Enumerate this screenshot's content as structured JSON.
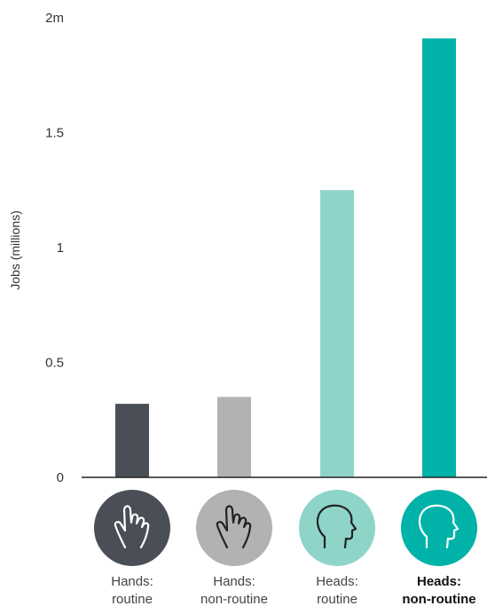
{
  "chart_data": {
    "type": "bar",
    "ylabel": "Jobs (millions)",
    "ylim": [
      0,
      2
    ],
    "yticks": [
      0,
      0.5,
      1,
      1.5,
      2
    ],
    "ytick_labels": [
      "0",
      "0.5",
      "1",
      "1.5",
      "2m"
    ],
    "categories": [
      {
        "line1": "Hands:",
        "line2": "routine",
        "value": 0.32,
        "color": "#4a4f57",
        "icon": "hand-icon",
        "bold": false
      },
      {
        "line1": "Hands:",
        "line2": "non-routine",
        "value": 0.35,
        "color": "#b0b2b3",
        "icon": "hand-icon",
        "bold": false
      },
      {
        "line1": "Heads:",
        "line2": "routine",
        "value": 1.25,
        "color": "#8fd4c9",
        "icon": "head-icon",
        "bold": false
      },
      {
        "line1": "Heads:",
        "line2": "non-routine",
        "value": 1.91,
        "color": "#00b2a7",
        "icon": "head-icon",
        "bold": true
      }
    ],
    "grid": false
  }
}
